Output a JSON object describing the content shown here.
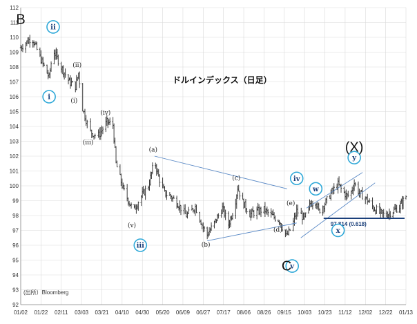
{
  "chart_data": {
    "type": "bar",
    "title": "ドルインデックス（日足）",
    "source": "(出所）Bloomberg",
    "ylim": [
      92,
      112
    ],
    "y_ticks": [
      "92",
      "93",
      "94",
      "95",
      "96",
      "97",
      "98",
      "99",
      "100",
      "101",
      "102",
      "103",
      "104",
      "105",
      "106",
      "107",
      "108",
      "109",
      "110",
      "111",
      "112"
    ],
    "x_ticks": [
      "01/02",
      "01/22",
      "02/11",
      "03/03",
      "03/21",
      "04/10",
      "04/30",
      "05/20",
      "06/09",
      "06/27",
      "07/17",
      "08/06",
      "08/26",
      "09/15",
      "10/03",
      "10/23",
      "11/12",
      "12/02",
      "12/22",
      "01/13"
    ],
    "grid": true,
    "colors": {
      "bars": "#3a3a3a",
      "trendlines": "#5b8ac6",
      "circles": "#2ea8d8",
      "fib_line": "#1a3f7a"
    },
    "anchors": [
      {
        "x": "01/02",
        "y": 109.3
      },
      {
        "x": "01/13",
        "y": 110.0
      },
      {
        "x": "01/22",
        "y": 108.5
      },
      {
        "x": "01/30",
        "y": 107.3
      },
      {
        "x": "02/03",
        "y": 109.2
      },
      {
        "x": "02/11",
        "y": 108.0
      },
      {
        "x": "02/19",
        "y": 107.0
      },
      {
        "x": "02/25",
        "y": 106.7
      },
      {
        "x": "02/28",
        "y": 107.6
      },
      {
        "x": "03/04",
        "y": 105.2
      },
      {
        "x": "03/10",
        "y": 103.7
      },
      {
        "x": "03/17",
        "y": 103.3
      },
      {
        "x": "03/26",
        "y": 104.3
      },
      {
        "x": "04/01",
        "y": 104.1
      },
      {
        "x": "04/04",
        "y": 101.5
      },
      {
        "x": "04/11",
        "y": 99.8
      },
      {
        "x": "04/21",
        "y": 98.3
      },
      {
        "x": "04/28",
        "y": 99.2
      },
      {
        "x": "05/06",
        "y": 100.0
      },
      {
        "x": "05/12",
        "y": 101.7
      },
      {
        "x": "05/16",
        "y": 100.6
      },
      {
        "x": "05/22",
        "y": 99.5
      },
      {
        "x": "05/28",
        "y": 99.3
      },
      {
        "x": "06/04",
        "y": 98.8
      },
      {
        "x": "06/12",
        "y": 98.0
      },
      {
        "x": "06/20",
        "y": 98.6
      },
      {
        "x": "06/27",
        "y": 97.2
      },
      {
        "x": "07/01",
        "y": 96.7
      },
      {
        "x": "07/08",
        "y": 97.5
      },
      {
        "x": "07/16",
        "y": 98.5
      },
      {
        "x": "07/22",
        "y": 97.4
      },
      {
        "x": "07/28",
        "y": 98.6
      },
      {
        "x": "07/31",
        "y": 99.9
      },
      {
        "x": "08/05",
        "y": 98.9
      },
      {
        "x": "08/12",
        "y": 98.1
      },
      {
        "x": "08/20",
        "y": 98.3
      },
      {
        "x": "08/26",
        "y": 98.4
      },
      {
        "x": "09/02",
        "y": 98.0
      },
      {
        "x": "09/10",
        "y": 97.7
      },
      {
        "x": "09/17",
        "y": 96.6
      },
      {
        "x": "09/22",
        "y": 97.3
      },
      {
        "x": "09/26",
        "y": 98.3
      },
      {
        "x": "10/03",
        "y": 97.8
      },
      {
        "x": "10/09",
        "y": 98.8
      },
      {
        "x": "10/14",
        "y": 99.0
      },
      {
        "x": "10/17",
        "y": 98.3
      },
      {
        "x": "10/23",
        "y": 98.8
      },
      {
        "x": "10/30",
        "y": 99.6
      },
      {
        "x": "11/05",
        "y": 100.1
      },
      {
        "x": "11/10",
        "y": 99.6
      },
      {
        "x": "11/14",
        "y": 99.3
      },
      {
        "x": "11/18",
        "y": 99.6
      },
      {
        "x": "11/21",
        "y": 100.2
      },
      {
        "x": "11/26",
        "y": 99.5
      },
      {
        "x": "12/02",
        "y": 99.2
      },
      {
        "x": "12/10",
        "y": 98.5
      },
      {
        "x": "12/16",
        "y": 98.2
      },
      {
        "x": "12/22",
        "y": 98.0
      },
      {
        "x": "12/30",
        "y": 98.3
      },
      {
        "x": "01/06",
        "y": 98.6
      },
      {
        "x": "01/13",
        "y": 99.3
      }
    ],
    "annotations": {
      "B": "B",
      "C": "C",
      "X": "(X)",
      "circled": [
        "ii",
        "i",
        "iii",
        "iv",
        "v",
        "w",
        "x",
        "y"
      ],
      "sub": [
        "(i)",
        "(ii)",
        "(iii)",
        "(iv)",
        "(v)",
        "(a)",
        "(b)",
        "(c)",
        "(d)",
        "(e)"
      ],
      "fib_level": "97.814 (0.618)"
    }
  }
}
